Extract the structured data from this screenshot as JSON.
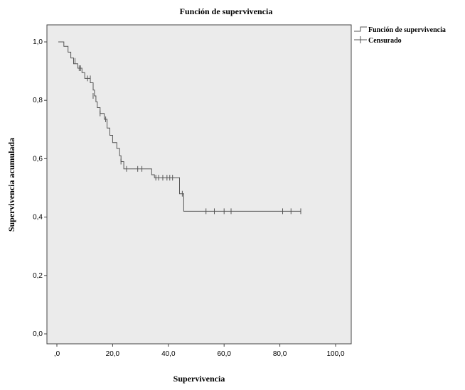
{
  "chart_data": {
    "type": "line",
    "title": "Función de supervivencia",
    "xlabel": "Supervivencia",
    "ylabel": "Supervivencia acumulada",
    "xlim": [
      0,
      100
    ],
    "ylim": [
      0,
      1
    ],
    "xticks": [
      0,
      20,
      40,
      60,
      80,
      100
    ],
    "xtick_labels": [
      ",0",
      "20,0",
      "40,0",
      "60,0",
      "80,0",
      "100,0"
    ],
    "yticks": [
      0,
      0.2,
      0.4,
      0.6,
      0.8,
      1.0
    ],
    "ytick_labels": [
      "0,0",
      "0,2",
      "0,4",
      "0,6",
      "0,8",
      "1,0"
    ],
    "grid": false,
    "legend_position": "top-right",
    "plot_background": "#ebebeb",
    "series": [
      {
        "name": "Función de supervivencia",
        "style": "step",
        "color": "#555555",
        "points": [
          [
            0.5,
            1.0
          ],
          [
            2.5,
            0.985
          ],
          [
            4.0,
            0.965
          ],
          [
            5.0,
            0.945
          ],
          [
            6.0,
            0.925
          ],
          [
            7.5,
            0.91
          ],
          [
            9.0,
            0.895
          ],
          [
            10.0,
            0.875
          ],
          [
            12.0,
            0.86
          ],
          [
            13.0,
            0.835
          ],
          [
            13.5,
            0.815
          ],
          [
            14.0,
            0.795
          ],
          [
            14.5,
            0.775
          ],
          [
            15.5,
            0.755
          ],
          [
            17.0,
            0.735
          ],
          [
            18.0,
            0.705
          ],
          [
            19.0,
            0.68
          ],
          [
            20.0,
            0.655
          ],
          [
            21.5,
            0.635
          ],
          [
            22.5,
            0.61
          ],
          [
            23.0,
            0.59
          ],
          [
            24.0,
            0.565
          ],
          [
            34.0,
            0.545
          ],
          [
            35.0,
            0.535
          ],
          [
            44.0,
            0.48
          ],
          [
            45.5,
            0.42
          ],
          [
            87.5,
            0.42
          ]
        ]
      },
      {
        "name": "Censurado",
        "style": "marker",
        "marker": "+",
        "color": "#555555",
        "points": [
          [
            6.5,
            0.935
          ],
          [
            8.0,
            0.91
          ],
          [
            8.5,
            0.91
          ],
          [
            11.0,
            0.875
          ],
          [
            12.0,
            0.875
          ],
          [
            13.0,
            0.815
          ],
          [
            15.5,
            0.755
          ],
          [
            17.5,
            0.735
          ],
          [
            23.0,
            0.59
          ],
          [
            25.0,
            0.565
          ],
          [
            29.0,
            0.565
          ],
          [
            30.5,
            0.565
          ],
          [
            35.5,
            0.535
          ],
          [
            36.5,
            0.535
          ],
          [
            38.0,
            0.535
          ],
          [
            39.5,
            0.535
          ],
          [
            40.5,
            0.535
          ],
          [
            41.5,
            0.535
          ],
          [
            45.0,
            0.48
          ],
          [
            53.5,
            0.42
          ],
          [
            56.5,
            0.42
          ],
          [
            60.0,
            0.42
          ],
          [
            62.5,
            0.42
          ],
          [
            81.0,
            0.42
          ],
          [
            84.0,
            0.42
          ],
          [
            87.5,
            0.42
          ]
        ]
      }
    ]
  }
}
